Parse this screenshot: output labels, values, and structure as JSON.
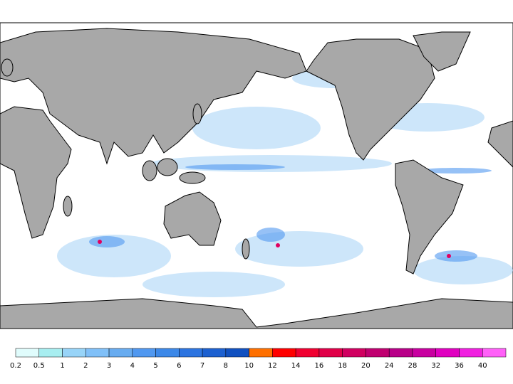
{
  "colorbar": {
    "labels": [
      0.2,
      0.5,
      1,
      2,
      3,
      4,
      5,
      6,
      7,
      8,
      10,
      12,
      14,
      16,
      18,
      20,
      24,
      28,
      32,
      36,
      40
    ],
    "colors": [
      "#e0fcfc",
      "#a8eef0",
      "#98d4f8",
      "#80c0f8",
      "#68acf0",
      "#5098f0",
      "#3c88e8",
      "#2c74e0",
      "#1c60d0",
      "#1050c0",
      "#ff7000",
      "#ff0000",
      "#f00030",
      "#e00048",
      "#d00060",
      "#c00070",
      "#b80088",
      "#c800a0",
      "#e000c0",
      "#f020e0",
      "#ff60f8"
    ]
  }
}
